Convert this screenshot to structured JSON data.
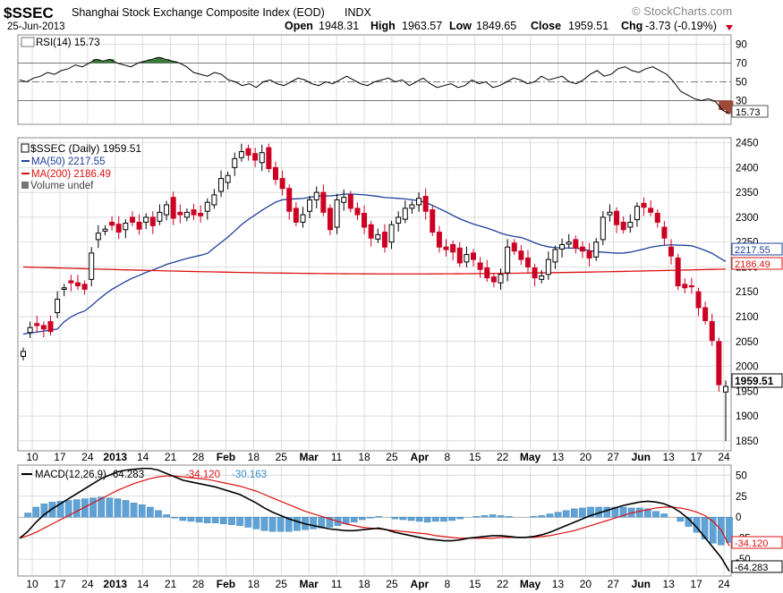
{
  "header": {
    "symbol": "$SSEC",
    "name": "Shanghai Stock Exchange Composite Index (EOD)",
    "exchange": "INDX",
    "date": "25-Jun-2013",
    "brand": "© StockCharts.com",
    "open_label": "Open",
    "open": "1948.31",
    "high_label": "High",
    "high": "1963.57",
    "low_label": "Low",
    "low": "1849.65",
    "close_label": "Close",
    "close": "1959.51",
    "chg_label": "Chg",
    "chg": "-3.73 (-0.19%)"
  },
  "colors": {
    "up": "#000000",
    "down": "#cc0022",
    "ma50": "#1f3f99",
    "ma200": "#dd1111",
    "hist": "#5fa2d6",
    "macd": "#000000",
    "signal": "#dd1111",
    "grid": "#cfcfcf",
    "rsi_over": "#3a7a3a",
    "rsi_under": "#a04a3a"
  },
  "chart_data": [
    {
      "type": "line",
      "panel": "RSI",
      "label": "RSI(14) 15.73",
      "ylim": [
        0,
        100
      ],
      "yticks": [
        30,
        50,
        70,
        90
      ],
      "levels": [
        30,
        50,
        70
      ],
      "last_value": "15.73",
      "values": [
        52,
        50,
        54,
        56,
        60,
        58,
        62,
        64,
        68,
        66,
        70,
        74,
        72,
        74,
        70,
        68,
        66,
        70,
        72,
        74,
        76,
        74,
        72,
        70,
        66,
        60,
        58,
        56,
        60,
        58,
        52,
        50,
        46,
        48,
        44,
        50,
        52,
        48,
        46,
        50,
        54,
        52,
        48,
        46,
        50,
        48,
        52,
        56,
        52,
        48,
        46,
        50,
        52,
        54,
        50,
        52,
        46,
        50,
        54,
        48,
        44,
        46,
        48,
        44,
        46,
        52,
        48,
        50,
        44,
        46,
        50,
        54,
        52,
        48,
        50,
        56,
        52,
        54,
        56,
        50,
        48,
        52,
        58,
        62,
        56,
        58,
        64,
        66,
        62,
        60,
        64,
        66,
        62,
        58,
        50,
        40,
        36,
        32,
        30,
        32,
        29,
        20,
        16
      ]
    },
    {
      "type": "candlestick",
      "panel": "price",
      "label": "$SSEC (Daily) 1959.51",
      "ylim": [
        1830,
        2460
      ],
      "yticks": [
        1850,
        1900,
        1950,
        2000,
        2050,
        2100,
        2150,
        2200,
        2250,
        2300,
        2350,
        2400,
        2450
      ],
      "x_labels": [
        "10",
        "17",
        "24",
        "2013",
        "14",
        "21",
        "28",
        "Feb",
        "18",
        "25",
        "Mar",
        "11",
        "18",
        "25",
        "Apr",
        "8",
        "15",
        "22",
        "May",
        "13",
        "20",
        "27",
        "Jun",
        "13",
        "17",
        "24"
      ],
      "legend": [
        {
          "name": "$SSEC (Daily) 1959.51",
          "color": "#000000"
        },
        {
          "name": "MA(50) 2217.55",
          "color": "#1f3f99"
        },
        {
          "name": "MA(200) 2186.49",
          "color": "#dd1111"
        },
        {
          "name": "Volume undef",
          "color": "#555555"
        }
      ],
      "close_tag": "1959.51",
      "ma50_tag": "2217.55",
      "ma200_tag": "2186.49",
      "close": [
        2030,
        2078,
        2082,
        2075,
        2070,
        2135,
        2158,
        2168,
        2162,
        2155,
        2228,
        2268,
        2276,
        2284,
        2270,
        2288,
        2290,
        2276,
        2300,
        2283,
        2310,
        2325,
        2298,
        2305,
        2310,
        2305,
        2303,
        2330,
        2345,
        2378,
        2384,
        2418,
        2432,
        2425,
        2415,
        2430,
        2398,
        2376,
        2358,
        2312,
        2290,
        2305,
        2335,
        2350,
        2310,
        2275,
        2335,
        2340,
        2318,
        2305,
        2280,
        2258,
        2265,
        2240,
        2285,
        2300,
        2318,
        2325,
        2338,
        2312,
        2270,
        2240,
        2235,
        2230,
        2208,
        2225,
        2215,
        2195,
        2178,
        2170,
        2185,
        2240,
        2232,
        2215,
        2200,
        2178,
        2182,
        2215,
        2235,
        2245,
        2250,
        2238,
        2232,
        2218,
        2250,
        2300,
        2310,
        2285,
        2275,
        2290,
        2322,
        2320,
        2310,
        2290,
        2258,
        2222,
        2162,
        2158,
        2160,
        2118,
        2092,
        2052,
        1963,
        1959.51
      ],
      "open": [
        2020,
        2068,
        2086,
        2082,
        2090,
        2108,
        2155,
        2172,
        2168,
        2165,
        2175,
        2255,
        2272,
        2290,
        2286,
        2275,
        2300,
        2290,
        2290,
        2300,
        2292,
        2305,
        2340,
        2310,
        2300,
        2315,
        2308,
        2312,
        2325,
        2352,
        2370,
        2400,
        2420,
        2438,
        2428,
        2410,
        2440,
        2400,
        2378,
        2358,
        2318,
        2290,
        2312,
        2335,
        2350,
        2318,
        2280,
        2330,
        2345,
        2318,
        2308,
        2285,
        2256,
        2270,
        2250,
        2288,
        2296,
        2318,
        2325,
        2342,
        2315,
        2270,
        2240,
        2245,
        2238,
        2210,
        2228,
        2208,
        2198,
        2180,
        2168,
        2188,
        2248,
        2232,
        2218,
        2198,
        2175,
        2185,
        2210,
        2236,
        2246,
        2255,
        2240,
        2232,
        2220,
        2255,
        2305,
        2312,
        2290,
        2280,
        2295,
        2328,
        2318,
        2308,
        2280,
        2240,
        2218,
        2165,
        2162,
        2150,
        2118,
        2090,
        2050,
        1948.31
      ]
    },
    {
      "type": "line",
      "panel": "MACD",
      "label": "MACD(12,26,9) -64.283, -34.120, -30.163",
      "legend": [
        {
          "name": "MACD(12,26,9) -64.283",
          "color": "#000000"
        },
        {
          "name": "-34.120",
          "color": "#dd1111"
        },
        {
          "name": "-30.163",
          "color": "#3b8fc9"
        }
      ],
      "ylim": [
        -70,
        62
      ],
      "yticks": [
        -50,
        -25,
        0,
        25,
        50
      ],
      "macd_tag": "-64.283",
      "signal_tag": "-34.120",
      "macd": [
        -25,
        -17,
        -6,
        3,
        10,
        16,
        22,
        28,
        34,
        40,
        46,
        50,
        54,
        56,
        57,
        58,
        58,
        56,
        52,
        48,
        44,
        42,
        40,
        38,
        36,
        33,
        30,
        27,
        22,
        17,
        11,
        6,
        2,
        -2,
        -5,
        -8,
        -10,
        -12,
        -14,
        -15,
        -16,
        -16,
        -15,
        -14,
        -13,
        -15,
        -18,
        -20,
        -22,
        -24,
        -26,
        -27,
        -28,
        -28,
        -27,
        -25,
        -24,
        -23,
        -22,
        -22,
        -23,
        -24,
        -24,
        -23,
        -21,
        -18,
        -14,
        -10,
        -6,
        -2,
        2,
        5,
        8,
        11,
        14,
        16,
        18,
        19,
        18,
        16,
        12,
        6,
        -2,
        -12,
        -24,
        -36,
        -48,
        -64.283
      ],
      "signal": [
        -25,
        -22,
        -18,
        -13,
        -8,
        -3,
        2,
        7,
        12,
        17,
        22,
        27,
        32,
        36,
        40,
        43,
        46,
        48,
        49,
        49,
        48,
        47,
        46,
        45,
        43,
        41,
        39,
        37,
        34,
        31,
        27,
        23,
        19,
        15,
        11,
        7,
        4,
        1,
        -2,
        -5,
        -8,
        -10,
        -12,
        -13,
        -14,
        -15,
        -16,
        -17,
        -18,
        -19,
        -20,
        -22,
        -23,
        -24,
        -25,
        -25,
        -25,
        -25,
        -25,
        -24,
        -24,
        -24,
        -24,
        -24,
        -23,
        -22,
        -20,
        -18,
        -16,
        -13,
        -10,
        -7,
        -4,
        -1,
        2,
        5,
        7,
        9,
        11,
        12,
        12,
        11,
        9,
        6,
        2,
        -5,
        -15,
        -34.12
      ]
    }
  ]
}
